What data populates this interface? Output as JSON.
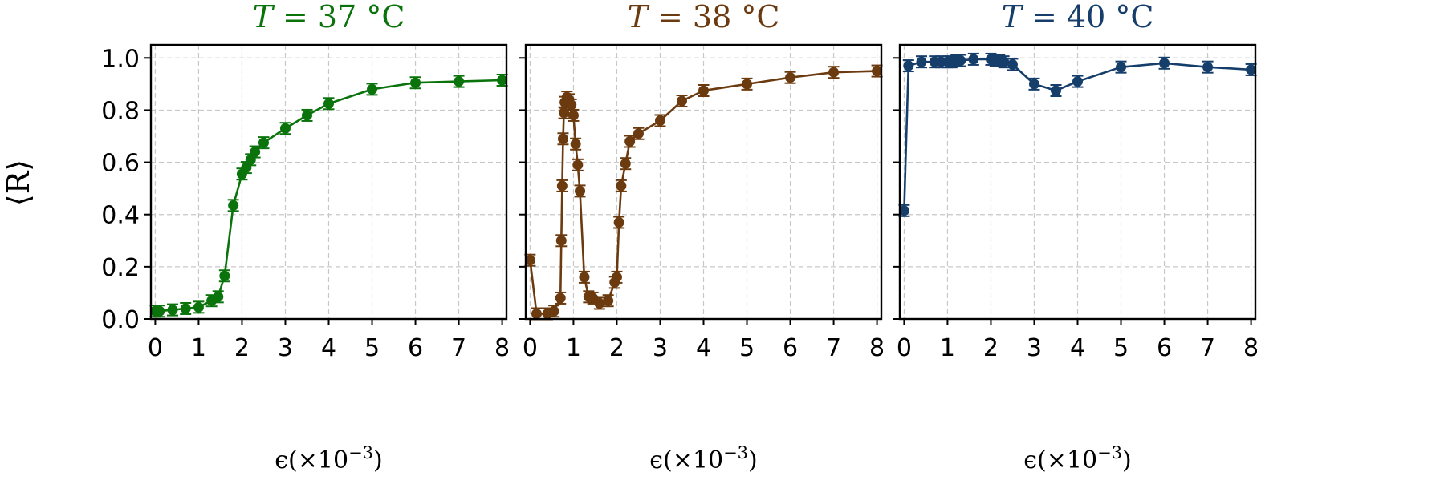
{
  "chart_data": [
    {
      "type": "line",
      "title": "T = 37 °C",
      "title_var": "T",
      "title_rest": " = 37 °C",
      "color": "#0b730b",
      "xlabel": "ϵ(×10",
      "xlabel_exp": "−3",
      "xlabel_close": ")",
      "ylabel": "⟨R⟩",
      "xlim": [
        -0.1,
        8.1
      ],
      "ylim": [
        0.0,
        1.05
      ],
      "xticks": [
        0,
        1,
        2,
        3,
        4,
        5,
        6,
        7,
        8
      ],
      "yticks": [
        "0.0",
        "0.2",
        "0.4",
        "0.6",
        "0.8",
        "1.0"
      ],
      "grid": true,
      "x": [
        0.0,
        0.1,
        0.4,
        0.7,
        1.0,
        1.3,
        1.45,
        1.6,
        1.8,
        2.0,
        2.1,
        2.2,
        2.3,
        2.5,
        3.0,
        3.5,
        4.0,
        5.0,
        6.0,
        7.0,
        8.0
      ],
      "y": [
        0.03,
        0.03,
        0.035,
        0.04,
        0.045,
        0.07,
        0.085,
        0.165,
        0.435,
        0.555,
        0.58,
        0.61,
        0.64,
        0.675,
        0.73,
        0.78,
        0.825,
        0.88,
        0.905,
        0.91,
        0.915
      ]
    },
    {
      "type": "line",
      "title": "T = 38 °C",
      "title_var": "T",
      "title_rest": " = 38 °C",
      "color": "#6b3a0f",
      "xlabel": "ϵ(×10",
      "xlabel_exp": "−3",
      "xlabel_close": ")",
      "xlim": [
        -0.1,
        8.1
      ],
      "ylim": [
        0.0,
        1.05
      ],
      "xticks": [
        0,
        1,
        2,
        3,
        4,
        5,
        6,
        7,
        8
      ],
      "grid": true,
      "x": [
        0.0,
        0.15,
        0.4,
        0.55,
        0.7,
        0.72,
        0.74,
        0.76,
        0.78,
        0.8,
        0.85,
        0.9,
        0.95,
        1.0,
        1.05,
        1.1,
        1.15,
        1.25,
        1.35,
        1.45,
        1.6,
        1.8,
        1.95,
        2.0,
        2.05,
        2.1,
        2.2,
        2.3,
        2.5,
        3.0,
        3.5,
        4.0,
        5.0,
        6.0,
        7.0,
        8.0
      ],
      "y": [
        0.225,
        0.02,
        0.02,
        0.03,
        0.08,
        0.3,
        0.51,
        0.69,
        0.79,
        0.83,
        0.85,
        0.84,
        0.82,
        0.78,
        0.67,
        0.59,
        0.49,
        0.16,
        0.085,
        0.08,
        0.06,
        0.07,
        0.14,
        0.16,
        0.37,
        0.51,
        0.595,
        0.68,
        0.71,
        0.76,
        0.835,
        0.875,
        0.9,
        0.925,
        0.945,
        0.95
      ]
    },
    {
      "type": "line",
      "title": "T = 40 °C",
      "title_var": "T",
      "title_rest": " = 40 °C",
      "color": "#163e6b",
      "xlabel": "ϵ(×10",
      "xlabel_exp": "−3",
      "xlabel_close": ")",
      "xlim": [
        -0.1,
        8.1
      ],
      "ylim": [
        0.0,
        1.05
      ],
      "xticks": [
        0,
        1,
        2,
        3,
        4,
        5,
        6,
        7,
        8
      ],
      "grid": true,
      "x": [
        0.0,
        0.1,
        0.4,
        0.7,
        0.85,
        1.0,
        1.1,
        1.2,
        1.3,
        1.6,
        2.0,
        2.1,
        2.2,
        2.3,
        2.5,
        3.0,
        3.5,
        4.0,
        5.0,
        6.0,
        7.0,
        8.0
      ],
      "y": [
        0.415,
        0.97,
        0.985,
        0.985,
        0.985,
        0.985,
        0.985,
        0.99,
        0.99,
        0.995,
        0.995,
        0.99,
        0.99,
        0.985,
        0.975,
        0.9,
        0.875,
        0.91,
        0.965,
        0.98,
        0.965,
        0.955
      ]
    }
  ]
}
